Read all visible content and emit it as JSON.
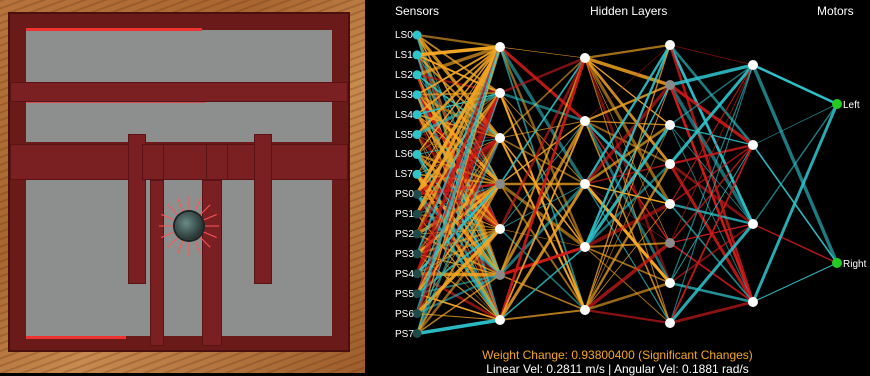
{
  "headers": {
    "sensors": "Sensors",
    "hidden": "Hidden Layers",
    "motors": "Motors"
  },
  "sensor_labels": [
    "LS0",
    "LS1",
    "LS2",
    "LS3",
    "LS4",
    "LS5",
    "LS6",
    "LS7",
    "PS0",
    "PS1",
    "PS2",
    "PS3",
    "PS4",
    "PS5",
    "PS6",
    "PS7"
  ],
  "motor_labels": [
    "Left",
    "Right"
  ],
  "status": {
    "weight_change": "Weight Change: 0.93800400 (Significant Changes)",
    "velocity": "Linear Vel: 0.2811 m/s | Angular Vel: 0.1881 rad/s"
  },
  "colors": {
    "positive": "#f5a623",
    "cyan": "#2ec4cc",
    "negative": "#d11a1a",
    "motor_active": "#22cc22"
  }
}
